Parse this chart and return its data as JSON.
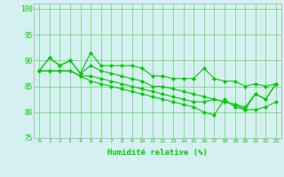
{
  "x": [
    0,
    1,
    2,
    3,
    4,
    5,
    6,
    7,
    8,
    9,
    10,
    11,
    12,
    13,
    14,
    15,
    16,
    17,
    18,
    19,
    20,
    21,
    22,
    23
  ],
  "line1": [
    88,
    90.5,
    89,
    90,
    87.5,
    91.5,
    89,
    89,
    89,
    89,
    88.5,
    87,
    87,
    86.5,
    86.5,
    86.5,
    88.5,
    86.5,
    86,
    86,
    85,
    85.5,
    85,
    85.5
  ],
  "line2": [
    88,
    90.5,
    89,
    90,
    87.5,
    89,
    88,
    87.5,
    87,
    86.5,
    86,
    85,
    85,
    84.5,
    84,
    83.5,
    83,
    82.5,
    82,
    81.5,
    81,
    83.5,
    82.5,
    85.5
  ],
  "line3": [
    88,
    88,
    88,
    88,
    87,
    87,
    86.5,
    86,
    85.5,
    85,
    84.5,
    84,
    83.5,
    83,
    82.5,
    82,
    82,
    82.5,
    82,
    81.5,
    80.5,
    80.5,
    81,
    82
  ],
  "line4": [
    88,
    88,
    88,
    88,
    87,
    86,
    85.5,
    85,
    84.5,
    84,
    83.5,
    83,
    82.5,
    82,
    81.5,
    81,
    80,
    79.5,
    82.5,
    81,
    80.5,
    83.5,
    82.5,
    85.5
  ],
  "ylim": [
    75,
    101
  ],
  "yticks": [
    75,
    80,
    85,
    90,
    95,
    100
  ],
  "xlabel": "Humidité relative (%)",
  "line_color": "#00cc00",
  "bg_color": "#d5f0f0",
  "grid_color": "#33cc33",
  "marker": "D",
  "marker_size": 2.0,
  "linewidth": 0.8,
  "figsize": [
    3.2,
    2.0
  ],
  "dpi": 100
}
